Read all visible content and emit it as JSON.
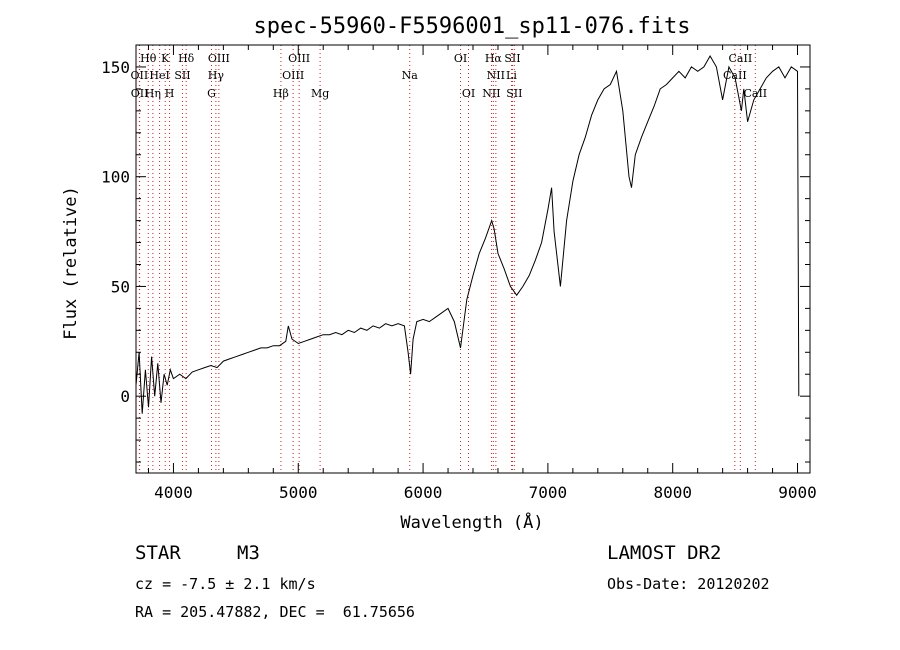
{
  "chart_data": {
    "type": "line",
    "title": "spec-55960-F5596001_sp11-076.fits",
    "xlabel": "Wavelength (Å)",
    "ylabel": "Flux (relative)",
    "xlim": [
      3700,
      9100
    ],
    "ylim": [
      -35,
      160
    ],
    "x_ticks": [
      4000,
      5000,
      6000,
      7000,
      8000,
      9000
    ],
    "y_ticks": [
      0,
      50,
      100,
      150
    ],
    "grid": false,
    "series": [
      {
        "x": [
          3700,
          3725,
          3750,
          3775,
          3800,
          3825,
          3850,
          3875,
          3900,
          3925,
          3950,
          3975,
          4000,
          4050,
          4100,
          4150,
          4200,
          4250,
          4300,
          4350,
          4400,
          4450,
          4500,
          4550,
          4600,
          4650,
          4700,
          4750,
          4800,
          4850,
          4900,
          4920,
          4950,
          5000,
          5050,
          5100,
          5150,
          5200,
          5250,
          5300,
          5350,
          5400,
          5450,
          5500,
          5550,
          5600,
          5650,
          5700,
          5750,
          5800,
          5850,
          5880,
          5900,
          5920,
          5950,
          6000,
          6050,
          6100,
          6150,
          6200,
          6250,
          6300,
          6350,
          6400,
          6450,
          6500,
          6550,
          6570,
          6600,
          6650,
          6700,
          6750,
          6800,
          6850,
          6900,
          6950,
          7000,
          7030,
          7050,
          7100,
          7150,
          7200,
          7250,
          7300,
          7350,
          7400,
          7450,
          7500,
          7550,
          7600,
          7650,
          7670,
          7700,
          7750,
          7800,
          7850,
          7900,
          7950,
          8000,
          8050,
          8100,
          8150,
          8200,
          8250,
          8300,
          8350,
          8400,
          8450,
          8500,
          8550,
          8570,
          8600,
          8650,
          8700,
          8750,
          8800,
          8850,
          8900,
          8950,
          9000,
          9010
        ],
        "y": [
          5,
          20,
          -8,
          12,
          -5,
          18,
          0,
          15,
          -3,
          10,
          5,
          12,
          8,
          10,
          8,
          11,
          12,
          13,
          14,
          13,
          16,
          17,
          18,
          19,
          20,
          21,
          22,
          22,
          23,
          23,
          25,
          32,
          26,
          24,
          25,
          26,
          27,
          28,
          28,
          29,
          28,
          30,
          29,
          31,
          30,
          32,
          31,
          33,
          32,
          33,
          32,
          20,
          10,
          26,
          34,
          35,
          34,
          36,
          38,
          40,
          34,
          22,
          44,
          55,
          65,
          72,
          80,
          76,
          65,
          58,
          50,
          46,
          50,
          55,
          62,
          70,
          85,
          95,
          75,
          50,
          80,
          98,
          110,
          118,
          128,
          135,
          140,
          142,
          148,
          130,
          100,
          95,
          110,
          118,
          125,
          132,
          140,
          142,
          145,
          148,
          145,
          150,
          148,
          150,
          155,
          150,
          135,
          150,
          145,
          130,
          140,
          125,
          135,
          140,
          145,
          148,
          150,
          145,
          150,
          148,
          0
        ]
      }
    ],
    "line_markers": [
      {
        "label": "Hθ",
        "x": 3798,
        "row": 0
      },
      {
        "label": "K",
        "x": 3934,
        "row": 0
      },
      {
        "label": "Hδ",
        "x": 4102,
        "row": 0
      },
      {
        "label": "OIII",
        "x": 4364,
        "row": 0
      },
      {
        "label": "OIII",
        "x": 5007,
        "row": 0
      },
      {
        "label": "OI",
        "x": 6300,
        "row": 0
      },
      {
        "label": "Hα",
        "x": 6563,
        "row": 0
      },
      {
        "label": "SII",
        "x": 6716,
        "row": 0
      },
      {
        "label": "CaII",
        "x": 8542,
        "row": 0
      },
      {
        "label": "OII",
        "x": 3727,
        "row": 1
      },
      {
        "label": "HeI",
        "x": 3889,
        "row": 1
      },
      {
        "label": "SII",
        "x": 4072,
        "row": 1
      },
      {
        "label": "Hγ",
        "x": 4340,
        "row": 1
      },
      {
        "label": "OIII",
        "x": 4959,
        "row": 1
      },
      {
        "label": "Na",
        "x": 5893,
        "row": 1
      },
      {
        "label": "NII",
        "x": 6583,
        "row": 1
      },
      {
        "label": "Li",
        "x": 6708,
        "row": 1
      },
      {
        "label": "CaII",
        "x": 8498,
        "row": 1
      },
      {
        "label": "OII",
        "x": 3729,
        "row": 2
      },
      {
        "label": "Hη",
        "x": 3835,
        "row": 2
      },
      {
        "label": "H",
        "x": 3969,
        "row": 2
      },
      {
        "label": "G",
        "x": 4305,
        "row": 2
      },
      {
        "label": "Hβ",
        "x": 4861,
        "row": 2
      },
      {
        "label": "Mg",
        "x": 5175,
        "row": 2
      },
      {
        "label": "OI",
        "x": 6364,
        "row": 2
      },
      {
        "label": "NII",
        "x": 6548,
        "row": 2
      },
      {
        "label": "SII",
        "x": 6731,
        "row": 2
      },
      {
        "label": "CaII",
        "x": 8662,
        "row": 2
      }
    ]
  },
  "footer": {
    "object_class": "STAR",
    "subclass": "M3",
    "survey": "LAMOST DR2",
    "cz": "cz = -7.5 ± 2.1 km/s",
    "obs_date": "Obs-Date: 20120202",
    "coords": "RA = 205.47882, DEC =  61.75656"
  }
}
